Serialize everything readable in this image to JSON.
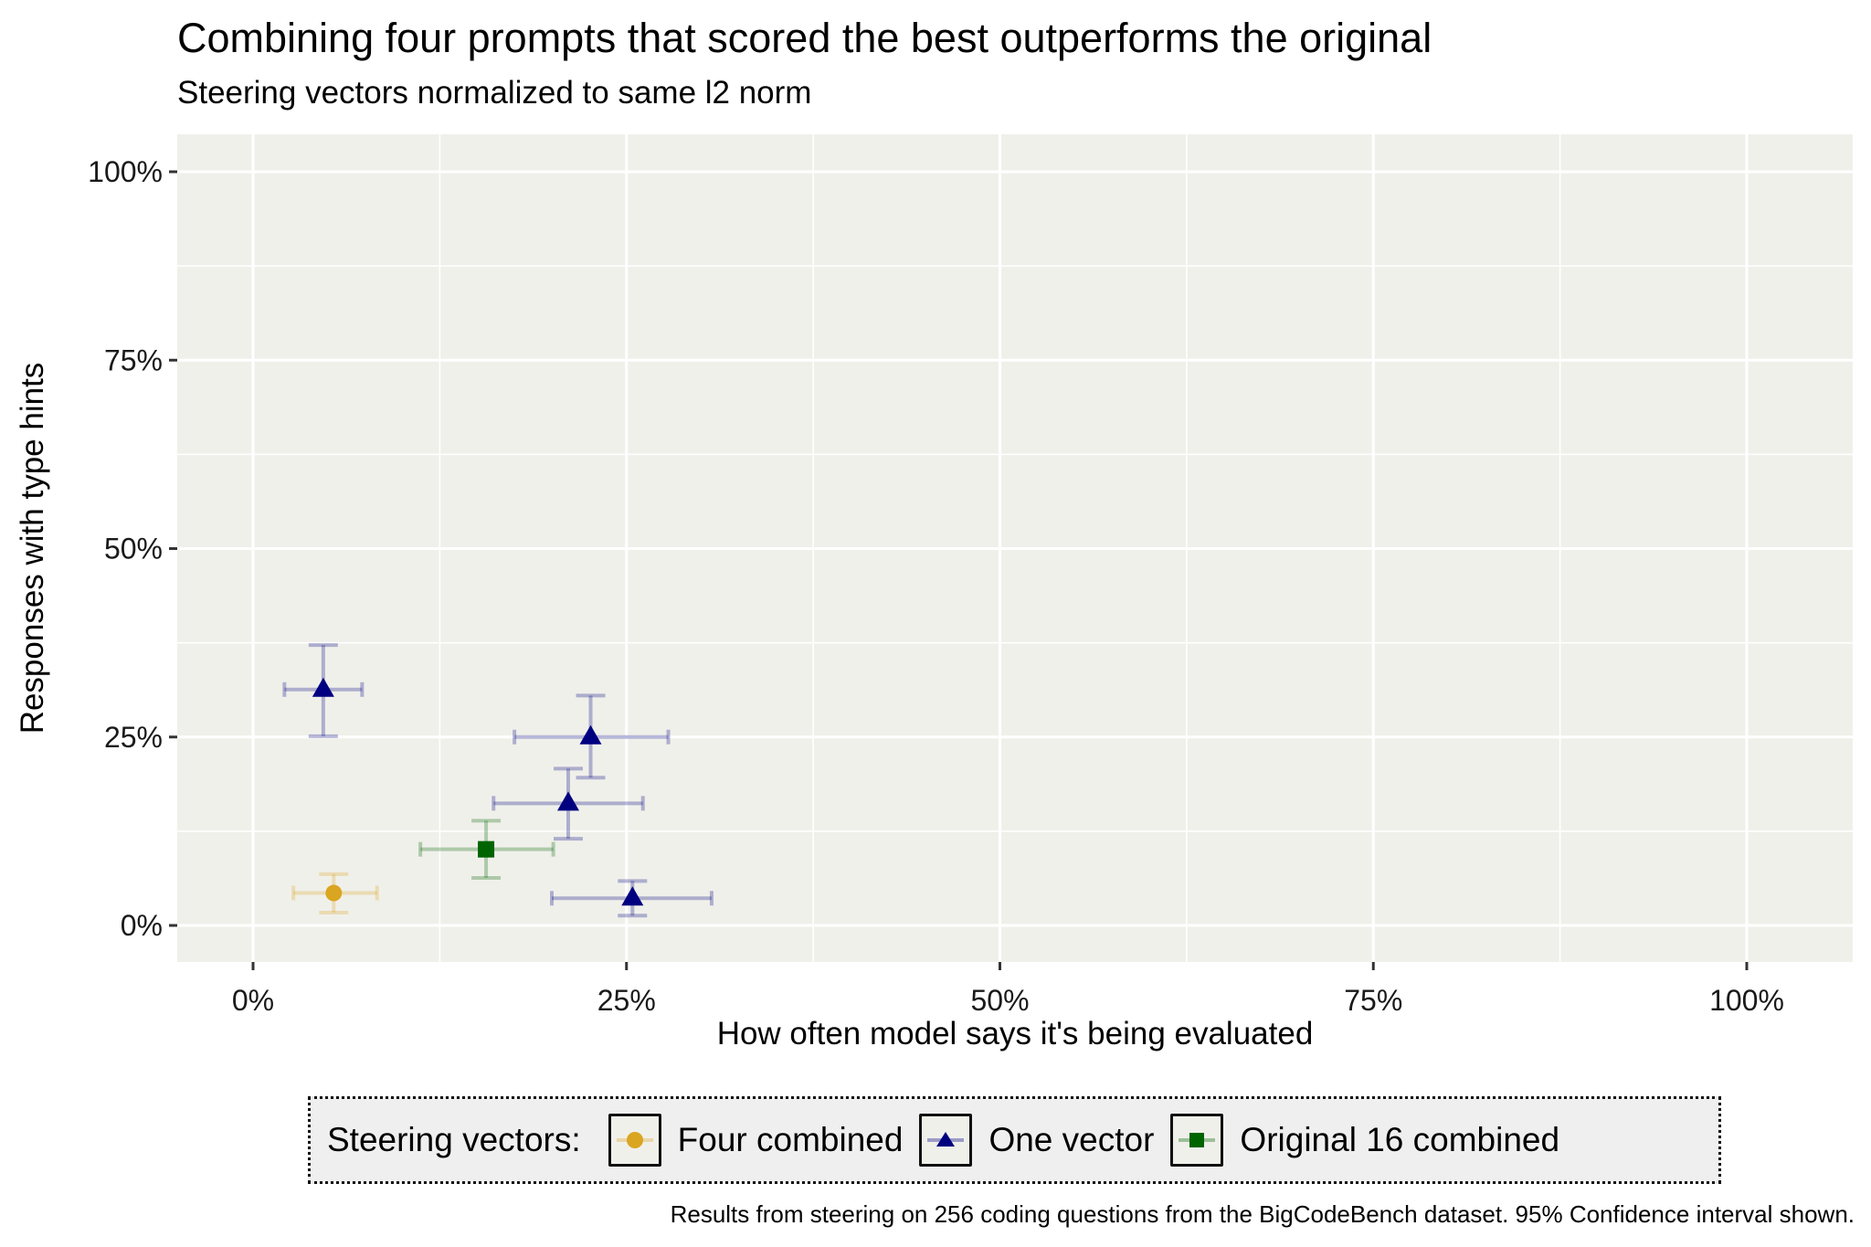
{
  "title": "Combining four prompts that scored the best outperforms the original",
  "subtitle": "Steering vectors normalized to same l2 norm",
  "caption": "Results from steering on 256 coding questions from the BigCodeBench dataset. 95% Confidence interval shown.",
  "legend": {
    "title": "Steering vectors:",
    "items": [
      {
        "label": "Four combined",
        "shape": "circle",
        "color": "#DAA520"
      },
      {
        "label": "One vector",
        "shape": "triangle",
        "color": "#000080"
      },
      {
        "label": "Original 16 combined",
        "shape": "square",
        "color": "#006400"
      }
    ]
  },
  "colors": {
    "panel_background": "#F0F0EB",
    "grid": "#FFFFFF",
    "Four combined": "#DAA520",
    "One vector": "#000080",
    "Original 16 combined": "#006400"
  },
  "chart_data": {
    "type": "scatter",
    "title": "Combining four prompts that scored the best outperforms the original",
    "subtitle": "Steering vectors normalized to same l2 norm",
    "xlabel": "How often model says it's being evaluated",
    "ylabel": "Responses with type hints",
    "xlim": [
      -5,
      107
    ],
    "ylim": [
      -5,
      105
    ],
    "x_ticks": [
      "0%",
      "25%",
      "50%",
      "75%",
      "100%"
    ],
    "x_tick_values": [
      0,
      25,
      50,
      75,
      100
    ],
    "y_ticks": [
      "0%",
      "25%",
      "50%",
      "75%",
      "100%"
    ],
    "y_tick_values": [
      0,
      25,
      50,
      75,
      100
    ],
    "grid": true,
    "legend_position": "bottom",
    "error_bars": "95% confidence interval",
    "series": [
      {
        "name": "Four combined",
        "marker": "circle",
        "color": "#DAA520",
        "points": [
          {
            "x": 5.4,
            "y": 4.3,
            "xmin": 2.7,
            "xmax": 8.3,
            "ymin": 1.7,
            "ymax": 6.8
          }
        ]
      },
      {
        "name": "One vector",
        "marker": "triangle",
        "color": "#000080",
        "points": [
          {
            "x": 4.7,
            "y": 31.3,
            "xmin": 2.1,
            "xmax": 7.3,
            "ymin": 25.1,
            "ymax": 37.2
          },
          {
            "x": 22.6,
            "y": 25.0,
            "xmin": 17.5,
            "xmax": 27.8,
            "ymin": 19.6,
            "ymax": 30.5
          },
          {
            "x": 21.1,
            "y": 16.2,
            "xmin": 16.1,
            "xmax": 26.1,
            "ymin": 11.5,
            "ymax": 20.8
          },
          {
            "x": 25.4,
            "y": 3.6,
            "xmin": 20.0,
            "xmax": 30.7,
            "ymin": 1.3,
            "ymax": 5.9
          }
        ]
      },
      {
        "name": "Original 16 combined",
        "marker": "square",
        "color": "#006400",
        "points": [
          {
            "x": 15.6,
            "y": 10.1,
            "xmin": 11.2,
            "xmax": 20.1,
            "ymin": 6.3,
            "ymax": 13.9
          }
        ]
      }
    ]
  }
}
